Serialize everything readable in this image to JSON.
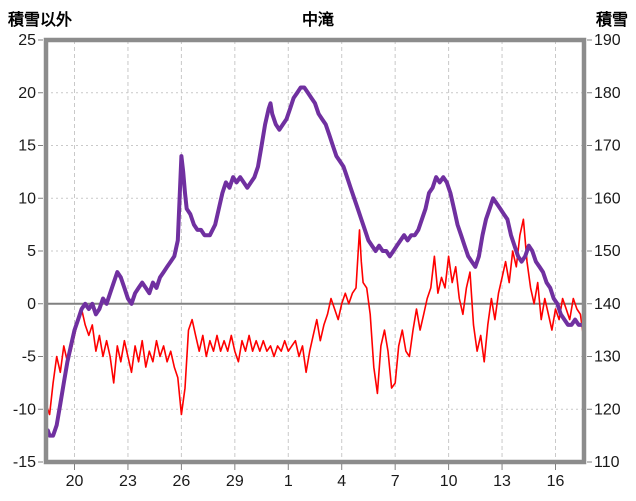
{
  "header": {
    "left_label": "積雪以外",
    "title": "中滝",
    "right_label": "積雪"
  },
  "colors": {
    "snow_line": "#7030A0",
    "other_line": "#FF0000",
    "grid": "#C9C9C9",
    "frame": "#8C8C8C",
    "zero_line": "#808080",
    "text": "#1A1A1A",
    "background": "#FFFFFF"
  },
  "chart_data": {
    "type": "line",
    "title": "中滝",
    "x_axis": {
      "range": [
        18.4,
        48.6
      ],
      "tick_values": [
        20,
        23,
        26,
        29,
        32,
        35,
        38,
        41,
        44,
        47
      ],
      "tick_labels": [
        "20",
        "23",
        "26",
        "29",
        "1",
        "4",
        "7",
        "10",
        "13",
        "16"
      ]
    },
    "left_axis": {
      "label": "積雪以外",
      "min": -15,
      "max": 25,
      "step": 5,
      "tick_labels": [
        "25",
        "20",
        "15",
        "10",
        "5",
        "0",
        "-5",
        "-10",
        "-15"
      ]
    },
    "right_axis": {
      "label": "積雪",
      "min": 110,
      "max": 190,
      "step": 10,
      "tick_labels": [
        "190",
        "180",
        "170",
        "160",
        "150",
        "140",
        "130",
        "120",
        "110"
      ]
    },
    "grid": true,
    "zero_line_left_value": 0,
    "legend": "none",
    "series": [
      {
        "name": "積雪以外",
        "axis": "left",
        "color": "#FF0000",
        "stroke_width": 1.6,
        "points": [
          [
            18.4,
            -9.5
          ],
          [
            18.6,
            -10.5
          ],
          [
            18.8,
            -7.5
          ],
          [
            19.0,
            -5
          ],
          [
            19.2,
            -6.5
          ],
          [
            19.4,
            -4
          ],
          [
            19.6,
            -5.5
          ],
          [
            19.8,
            -4.5
          ],
          [
            20.0,
            -3
          ],
          [
            20.2,
            -1.5
          ],
          [
            20.4,
            -0.5
          ],
          [
            20.6,
            -2
          ],
          [
            20.8,
            -3
          ],
          [
            21.0,
            -2
          ],
          [
            21.2,
            -4.5
          ],
          [
            21.4,
            -3
          ],
          [
            21.6,
            -5
          ],
          [
            21.8,
            -3.5
          ],
          [
            22.0,
            -5
          ],
          [
            22.2,
            -7.5
          ],
          [
            22.4,
            -4
          ],
          [
            22.6,
            -5.5
          ],
          [
            22.8,
            -3.5
          ],
          [
            23.0,
            -5
          ],
          [
            23.2,
            -6.5
          ],
          [
            23.4,
            -4
          ],
          [
            23.6,
            -5.5
          ],
          [
            23.8,
            -3.5
          ],
          [
            24.0,
            -6
          ],
          [
            24.2,
            -4.5
          ],
          [
            24.4,
            -5.5
          ],
          [
            24.6,
            -3.5
          ],
          [
            24.8,
            -5
          ],
          [
            25.0,
            -4
          ],
          [
            25.2,
            -5.5
          ],
          [
            25.4,
            -4.5
          ],
          [
            25.6,
            -6
          ],
          [
            25.8,
            -7
          ],
          [
            26.0,
            -10.5
          ],
          [
            26.2,
            -8
          ],
          [
            26.4,
            -2.5
          ],
          [
            26.6,
            -1.5
          ],
          [
            26.8,
            -3
          ],
          [
            27.0,
            -4.5
          ],
          [
            27.2,
            -3
          ],
          [
            27.4,
            -5
          ],
          [
            27.6,
            -3.5
          ],
          [
            27.8,
            -4.5
          ],
          [
            28.0,
            -3
          ],
          [
            28.2,
            -4.5
          ],
          [
            28.4,
            -3.5
          ],
          [
            28.6,
            -4.5
          ],
          [
            28.8,
            -3
          ],
          [
            29.0,
            -4.5
          ],
          [
            29.2,
            -5.5
          ],
          [
            29.4,
            -3.5
          ],
          [
            29.6,
            -4.5
          ],
          [
            29.8,
            -3
          ],
          [
            30.0,
            -4.5
          ],
          [
            30.2,
            -3.5
          ],
          [
            30.4,
            -4.5
          ],
          [
            30.6,
            -3.5
          ],
          [
            30.8,
            -4.5
          ],
          [
            31.0,
            -4
          ],
          [
            31.2,
            -5
          ],
          [
            31.4,
            -4
          ],
          [
            31.6,
            -4.5
          ],
          [
            31.8,
            -3.5
          ],
          [
            32.0,
            -4.5
          ],
          [
            32.2,
            -4
          ],
          [
            32.4,
            -3.5
          ],
          [
            32.6,
            -5
          ],
          [
            32.8,
            -4
          ],
          [
            33.0,
            -6.5
          ],
          [
            33.2,
            -4.5
          ],
          [
            33.4,
            -3
          ],
          [
            33.6,
            -1.5
          ],
          [
            33.8,
            -3.5
          ],
          [
            34.0,
            -2
          ],
          [
            34.2,
            -1
          ],
          [
            34.4,
            0.5
          ],
          [
            34.6,
            -0.5
          ],
          [
            34.8,
            -1.5
          ],
          [
            35.0,
            0
          ],
          [
            35.2,
            1
          ],
          [
            35.4,
            0
          ],
          [
            35.6,
            1
          ],
          [
            35.8,
            1.5
          ],
          [
            36.0,
            7
          ],
          [
            36.1,
            4
          ],
          [
            36.2,
            2
          ],
          [
            36.4,
            1.5
          ],
          [
            36.6,
            -1
          ],
          [
            36.8,
            -6
          ],
          [
            37.0,
            -8.5
          ],
          [
            37.2,
            -4
          ],
          [
            37.4,
            -2.5
          ],
          [
            37.6,
            -4.5
          ],
          [
            37.8,
            -8
          ],
          [
            38.0,
            -7.5
          ],
          [
            38.2,
            -4
          ],
          [
            38.4,
            -2.5
          ],
          [
            38.6,
            -4.5
          ],
          [
            38.8,
            -5
          ],
          [
            39.0,
            -2.5
          ],
          [
            39.2,
            -0.5
          ],
          [
            39.4,
            -2.5
          ],
          [
            39.6,
            -1
          ],
          [
            39.8,
            0.5
          ],
          [
            40.0,
            1.5
          ],
          [
            40.2,
            4.5
          ],
          [
            40.4,
            1
          ],
          [
            40.6,
            2.5
          ],
          [
            40.8,
            1.5
          ],
          [
            41.0,
            4.5
          ],
          [
            41.2,
            2
          ],
          [
            41.4,
            3.5
          ],
          [
            41.6,
            0.5
          ],
          [
            41.8,
            -1
          ],
          [
            42.0,
            1.5
          ],
          [
            42.2,
            3
          ],
          [
            42.4,
            -2
          ],
          [
            42.6,
            -4.5
          ],
          [
            42.8,
            -3
          ],
          [
            43.0,
            -5.5
          ],
          [
            43.2,
            -2
          ],
          [
            43.4,
            0.5
          ],
          [
            43.6,
            -1.5
          ],
          [
            43.8,
            1
          ],
          [
            44.0,
            2.5
          ],
          [
            44.2,
            4
          ],
          [
            44.4,
            2
          ],
          [
            44.6,
            5
          ],
          [
            44.8,
            3.5
          ],
          [
            45.0,
            6.5
          ],
          [
            45.2,
            8
          ],
          [
            45.4,
            4
          ],
          [
            45.6,
            1.5
          ],
          [
            45.8,
            0
          ],
          [
            46.0,
            2
          ],
          [
            46.2,
            -1.5
          ],
          [
            46.4,
            0.5
          ],
          [
            46.6,
            -1
          ],
          [
            46.8,
            -2.5
          ],
          [
            47.0,
            -0.5
          ],
          [
            47.2,
            -1.5
          ],
          [
            47.4,
            0.5
          ],
          [
            47.6,
            -0.5
          ],
          [
            47.8,
            -1.5
          ],
          [
            48.0,
            0.5
          ],
          [
            48.2,
            -0.5
          ],
          [
            48.4,
            -1
          ],
          [
            48.6,
            -3.5
          ]
        ]
      },
      {
        "name": "積雪",
        "axis": "right",
        "color": "#7030A0",
        "stroke_width": 4,
        "points": [
          [
            18.5,
            116
          ],
          [
            18.6,
            115
          ],
          [
            18.8,
            115
          ],
          [
            19.0,
            117
          ],
          [
            19.2,
            121
          ],
          [
            19.4,
            125
          ],
          [
            19.6,
            129
          ],
          [
            19.8,
            132
          ],
          [
            20.0,
            135
          ],
          [
            20.2,
            137
          ],
          [
            20.4,
            139
          ],
          [
            20.6,
            140
          ],
          [
            20.8,
            139
          ],
          [
            21.0,
            140
          ],
          [
            21.2,
            138
          ],
          [
            21.4,
            139
          ],
          [
            21.6,
            141
          ],
          [
            21.8,
            140
          ],
          [
            22.0,
            142
          ],
          [
            22.2,
            144
          ],
          [
            22.4,
            146
          ],
          [
            22.6,
            145
          ],
          [
            22.8,
            143
          ],
          [
            23.0,
            141
          ],
          [
            23.2,
            140
          ],
          [
            23.4,
            142
          ],
          [
            23.6,
            143
          ],
          [
            23.8,
            144
          ],
          [
            24.0,
            143
          ],
          [
            24.2,
            142
          ],
          [
            24.4,
            144
          ],
          [
            24.6,
            143
          ],
          [
            24.8,
            145
          ],
          [
            25.0,
            146
          ],
          [
            25.2,
            147
          ],
          [
            25.4,
            148
          ],
          [
            25.6,
            149
          ],
          [
            25.8,
            152
          ],
          [
            25.9,
            160
          ],
          [
            26.0,
            168
          ],
          [
            26.1,
            165
          ],
          [
            26.2,
            161
          ],
          [
            26.3,
            158
          ],
          [
            26.5,
            157
          ],
          [
            26.7,
            155
          ],
          [
            26.9,
            154
          ],
          [
            27.1,
            154
          ],
          [
            27.3,
            153
          ],
          [
            27.6,
            153
          ],
          [
            27.9,
            155
          ],
          [
            28.1,
            158
          ],
          [
            28.3,
            161
          ],
          [
            28.5,
            163
          ],
          [
            28.7,
            162
          ],
          [
            28.9,
            164
          ],
          [
            29.1,
            163
          ],
          [
            29.3,
            164
          ],
          [
            29.5,
            163
          ],
          [
            29.7,
            162
          ],
          [
            29.9,
            163
          ],
          [
            30.1,
            164
          ],
          [
            30.3,
            166
          ],
          [
            30.5,
            170
          ],
          [
            30.7,
            174
          ],
          [
            30.9,
            177
          ],
          [
            31.0,
            178
          ],
          [
            31.1,
            176
          ],
          [
            31.3,
            174
          ],
          [
            31.5,
            173
          ],
          [
            31.7,
            174
          ],
          [
            31.9,
            175
          ],
          [
            32.1,
            177
          ],
          [
            32.3,
            179
          ],
          [
            32.5,
            180
          ],
          [
            32.7,
            181
          ],
          [
            32.9,
            181
          ],
          [
            33.1,
            180
          ],
          [
            33.3,
            179
          ],
          [
            33.5,
            178
          ],
          [
            33.7,
            176
          ],
          [
            33.9,
            175
          ],
          [
            34.1,
            174
          ],
          [
            34.3,
            172
          ],
          [
            34.5,
            170
          ],
          [
            34.7,
            168
          ],
          [
            34.9,
            167
          ],
          [
            35.1,
            166
          ],
          [
            35.3,
            164
          ],
          [
            35.5,
            162
          ],
          [
            35.7,
            160
          ],
          [
            35.9,
            158
          ],
          [
            36.1,
            156
          ],
          [
            36.3,
            154
          ],
          [
            36.5,
            152
          ],
          [
            36.7,
            151
          ],
          [
            36.9,
            150
          ],
          [
            37.1,
            151
          ],
          [
            37.3,
            150
          ],
          [
            37.5,
            150
          ],
          [
            37.7,
            149
          ],
          [
            37.9,
            150
          ],
          [
            38.1,
            151
          ],
          [
            38.3,
            152
          ],
          [
            38.5,
            153
          ],
          [
            38.7,
            152
          ],
          [
            38.9,
            153
          ],
          [
            39.1,
            153
          ],
          [
            39.3,
            154
          ],
          [
            39.5,
            156
          ],
          [
            39.7,
            158
          ],
          [
            39.9,
            161
          ],
          [
            40.1,
            162
          ],
          [
            40.3,
            164
          ],
          [
            40.5,
            163
          ],
          [
            40.7,
            164
          ],
          [
            40.9,
            163
          ],
          [
            41.1,
            161
          ],
          [
            41.3,
            158
          ],
          [
            41.5,
            155
          ],
          [
            41.7,
            153
          ],
          [
            41.9,
            151
          ],
          [
            42.1,
            149
          ],
          [
            42.3,
            148
          ],
          [
            42.5,
            147
          ],
          [
            42.7,
            149
          ],
          [
            42.9,
            153
          ],
          [
            43.1,
            156
          ],
          [
            43.3,
            158
          ],
          [
            43.5,
            160
          ],
          [
            43.7,
            159
          ],
          [
            43.9,
            158
          ],
          [
            44.1,
            157
          ],
          [
            44.3,
            156
          ],
          [
            44.5,
            153
          ],
          [
            44.7,
            151
          ],
          [
            44.9,
            149
          ],
          [
            45.1,
            148
          ],
          [
            45.3,
            149
          ],
          [
            45.5,
            151
          ],
          [
            45.7,
            150
          ],
          [
            45.9,
            148
          ],
          [
            46.1,
            147
          ],
          [
            46.3,
            146
          ],
          [
            46.5,
            144
          ],
          [
            46.7,
            143
          ],
          [
            46.9,
            141
          ],
          [
            47.1,
            140
          ],
          [
            47.3,
            138
          ],
          [
            47.5,
            137
          ],
          [
            47.7,
            136
          ],
          [
            47.9,
            136
          ],
          [
            48.1,
            137
          ],
          [
            48.3,
            136
          ],
          [
            48.5,
            136
          ]
        ]
      }
    ]
  }
}
